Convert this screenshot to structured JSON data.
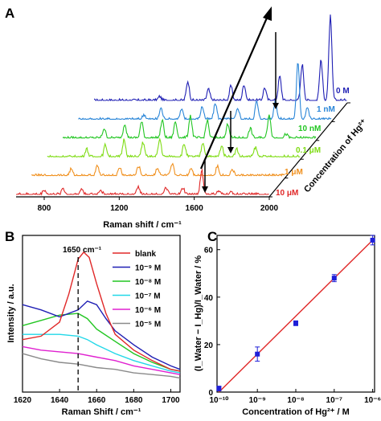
{
  "panels": {
    "A": {
      "letter": "A",
      "xlabel": "Raman shift / cm⁻¹",
      "xticks": [
        "800",
        "1200",
        "1600",
        "2000"
      ],
      "zlabel": "Concentration of Hg²⁺",
      "traces": [
        {
          "label": "0 M",
          "color": "#1f1fb4"
        },
        {
          "label": "1 nM",
          "color": "#2a86d8"
        },
        {
          "label": "10 nM",
          "color": "#22c622"
        },
        {
          "label": "0.1 μM",
          "color": "#7fdc14"
        },
        {
          "label": "1 μM",
          "color": "#f0901e"
        },
        {
          "label": "10 μM",
          "color": "#e02828"
        }
      ]
    },
    "B": {
      "letter": "B",
      "annotation": "1650 cm⁻¹",
      "xlabel": "Raman Shift / cm⁻¹",
      "ylabel": "Intensity / a.u.",
      "legend": [
        {
          "label": "blank",
          "color": "#e02828"
        },
        {
          "label": "10⁻⁹ M",
          "color": "#1f1fb4"
        },
        {
          "label": "10⁻⁸ M",
          "color": "#22c622"
        },
        {
          "label": "10⁻⁷ M",
          "color": "#22d8e8"
        },
        {
          "label": "10⁻⁶ M",
          "color": "#e020d0"
        },
        {
          "label": "10⁻⁵ M",
          "color": "#8a8a8a"
        }
      ]
    },
    "C": {
      "letter": "C",
      "xlabel": "Concentration of Hg²⁺ / M",
      "ylabel": "(I_Water − I_Hg)/I_Water / %"
    }
  },
  "chart_data": [
    {
      "panel": "A",
      "type": "line",
      "title": "",
      "xlabel": "Raman shift / cm⁻¹",
      "xlim": [
        650,
        2000
      ],
      "x_ticks": [
        800,
        1200,
        1600,
        2000
      ],
      "depth_axis": "Concentration of Hg²⁺",
      "series": [
        {
          "name": "0 M",
          "depth": 5,
          "peaks": [
            [
              1000,
              5
            ],
            [
              1150,
              24
            ],
            [
              1260,
              14
            ],
            [
              1380,
              18
            ],
            [
              1450,
              20
            ],
            [
              1560,
              16
            ],
            [
              1640,
              30
            ],
            [
              1760,
              45
            ],
            [
              1860,
              50
            ],
            [
              1910,
              105
            ]
          ]
        },
        {
          "name": "1 nM",
          "depth": 4,
          "peaks": [
            [
              1000,
              6
            ],
            [
              1090,
              14
            ],
            [
              1200,
              12
            ],
            [
              1310,
              16
            ],
            [
              1380,
              20
            ],
            [
              1500,
              14
            ],
            [
              1600,
              22
            ],
            [
              1700,
              24
            ],
            [
              1820,
              70
            ],
            [
              1870,
              15
            ]
          ]
        },
        {
          "name": "10 nM",
          "depth": 3,
          "peaks": [
            [
              870,
              12
            ],
            [
              980,
              18
            ],
            [
              1070,
              20
            ],
            [
              1180,
              22
            ],
            [
              1250,
              20
            ],
            [
              1330,
              28
            ],
            [
              1420,
              22
            ],
            [
              1530,
              18
            ],
            [
              1650,
              12
            ],
            [
              1750,
              30
            ],
            [
              1840,
              5
            ]
          ]
        },
        {
          "name": "0.1 μM",
          "depth": 2,
          "peaks": [
            [
              860,
              10
            ],
            [
              960,
              15
            ],
            [
              1060,
              22
            ],
            [
              1160,
              18
            ],
            [
              1250,
              22
            ],
            [
              1380,
              16
            ],
            [
              1480,
              18
            ],
            [
              1580,
              14
            ],
            [
              1660,
              10
            ],
            [
              1760,
              12
            ]
          ]
        },
        {
          "name": "1 μM",
          "depth": 1,
          "peaks": [
            [
              860,
              8
            ],
            [
              1000,
              12
            ],
            [
              1120,
              10
            ],
            [
              1220,
              12
            ],
            [
              1320,
              10
            ],
            [
              1400,
              14
            ],
            [
              1500,
              10
            ],
            [
              1640,
              12
            ],
            [
              1720,
              8
            ]
          ]
        },
        {
          "name": "10 μM",
          "depth": 0,
          "peaks": [
            [
              800,
              6
            ],
            [
              900,
              8
            ],
            [
              1000,
              7
            ],
            [
              1100,
              6
            ],
            [
              1300,
              10
            ],
            [
              1450,
              8
            ],
            [
              1540,
              8
            ],
            [
              1640,
              30
            ],
            [
              1730,
              4
            ],
            [
              1800,
              3
            ]
          ]
        }
      ]
    },
    {
      "panel": "B",
      "type": "line",
      "title": "",
      "xlabel": "Raman Shift / cm⁻¹",
      "ylabel": "Intensity / a.u.",
      "xlim": [
        1620,
        1705
      ],
      "x_ticks": [
        1620,
        1640,
        1660,
        1680,
        1700
      ],
      "annotation_x": 1650,
      "series": [
        {
          "name": "blank",
          "x": [
            1620,
            1630,
            1640,
            1645,
            1650,
            1653,
            1656,
            1660,
            1665,
            1670,
            1680,
            1690,
            1700,
            1705
          ],
          "y": [
            0.3,
            0.32,
            0.4,
            0.56,
            0.76,
            0.8,
            0.77,
            0.62,
            0.45,
            0.33,
            0.24,
            0.18,
            0.13,
            0.12
          ]
        },
        {
          "name": "10⁻⁹ M",
          "x": [
            1620,
            1630,
            1640,
            1650,
            1655,
            1660,
            1665,
            1670,
            1680,
            1690,
            1700,
            1705
          ],
          "y": [
            0.5,
            0.47,
            0.43,
            0.47,
            0.52,
            0.5,
            0.42,
            0.35,
            0.27,
            0.2,
            0.15,
            0.13
          ]
        },
        {
          "name": "10⁻⁸ M",
          "x": [
            1620,
            1630,
            1640,
            1650,
            1655,
            1660,
            1670,
            1680,
            1690,
            1700,
            1705
          ],
          "y": [
            0.38,
            0.41,
            0.44,
            0.45,
            0.42,
            0.36,
            0.29,
            0.22,
            0.17,
            0.13,
            0.12
          ]
        },
        {
          "name": "10⁻⁷ M",
          "x": [
            1620,
            1630,
            1640,
            1650,
            1655,
            1660,
            1670,
            1680,
            1690,
            1700,
            1705
          ],
          "y": [
            0.33,
            0.33,
            0.33,
            0.32,
            0.3,
            0.27,
            0.22,
            0.18,
            0.15,
            0.12,
            0.11
          ]
        },
        {
          "name": "10⁻⁶ M",
          "x": [
            1620,
            1630,
            1640,
            1650,
            1660,
            1670,
            1680,
            1690,
            1700,
            1705
          ],
          "y": [
            0.26,
            0.24,
            0.23,
            0.22,
            0.2,
            0.18,
            0.15,
            0.13,
            0.11,
            0.1
          ]
        },
        {
          "name": "10⁻⁵ M",
          "x": [
            1620,
            1630,
            1640,
            1650,
            1660,
            1670,
            1680,
            1690,
            1700,
            1705
          ],
          "y": [
            0.22,
            0.19,
            0.17,
            0.16,
            0.14,
            0.13,
            0.11,
            0.1,
            0.09,
            0.08
          ]
        }
      ]
    },
    {
      "panel": "C",
      "type": "scatter",
      "title": "",
      "xlabel": "Concentration of Hg²⁺ / M",
      "ylabel": "(I_Water − I_Hg)/I_Water / %",
      "x_scale": "log",
      "xlim": [
        1e-10,
        1e-06
      ],
      "x_ticks": [
        "10⁻¹⁰",
        "10⁻⁹",
        "10⁻⁸",
        "10⁻⁷",
        "10⁻⁶"
      ],
      "ylim": [
        0,
        66
      ],
      "y_ticks": [
        0,
        20,
        40,
        60
      ],
      "points": [
        {
          "x": 1e-10,
          "y": 1.5,
          "err": 1
        },
        {
          "x": 1e-09,
          "y": 16,
          "err": 3
        },
        {
          "x": 1e-08,
          "y": 29,
          "err": 1
        },
        {
          "x": 1e-07,
          "y": 48,
          "err": 1.5
        },
        {
          "x": 1e-06,
          "y": 64,
          "err": 2
        }
      ],
      "fit_line": {
        "x": [
          1e-10,
          1e-06
        ],
        "y": [
          0,
          64
        ],
        "color": "#e02828"
      },
      "marker_color": "#1f1fd8"
    }
  ]
}
